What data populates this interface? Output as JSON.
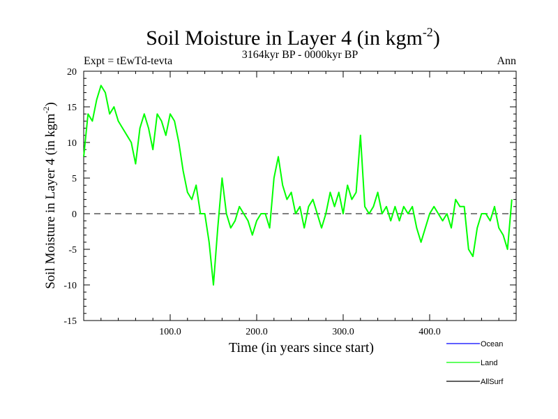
{
  "chart_data": {
    "type": "line",
    "title": "Soil Moisture in Layer 4 (in kgm",
    "title_exponent": "-2",
    "title_close": ")",
    "subtitle_left": "Expt = tEwTd-tevta",
    "subtitle_center": "3164kyr BP - 0000kyr BP",
    "subtitle_right": "Ann",
    "xlabel": "Time (in years since start)",
    "ylabel": "Soil Moisture in Layer 4 (in kgm",
    "ylabel_exponent": "-2",
    "ylabel_close": ")",
    "xlim": [
      0,
      500
    ],
    "ylim": [
      -15,
      20
    ],
    "x_ticks": [
      {
        "value": 100,
        "label": "100.0"
      },
      {
        "value": 200,
        "label": "200.0"
      },
      {
        "value": 300,
        "label": "300.0"
      },
      {
        "value": 400,
        "label": "400.0"
      }
    ],
    "y_ticks": [
      {
        "value": 20,
        "label": "20"
      },
      {
        "value": 15,
        "label": "15"
      },
      {
        "value": 10,
        "label": "10"
      },
      {
        "value": 5,
        "label": "5"
      },
      {
        "value": 0,
        "label": "0"
      },
      {
        "value": -5,
        "label": "-5"
      },
      {
        "value": -10,
        "label": "-10"
      },
      {
        "value": -15,
        "label": "-15"
      }
    ],
    "zero_line": {
      "value": 0,
      "style": "dashed"
    },
    "legend": [
      {
        "name": "Ocean",
        "color": "#0000ff"
      },
      {
        "name": "Land",
        "color": "#00ff00"
      },
      {
        "name": "AllSurf",
        "color": "#000000"
      }
    ],
    "series": [
      {
        "name": "Land",
        "color": "#00ff00",
        "x": [
          0,
          5,
          10,
          15,
          20,
          25,
          30,
          35,
          40,
          45,
          50,
          55,
          60,
          65,
          70,
          75,
          80,
          85,
          90,
          95,
          100,
          105,
          110,
          115,
          120,
          125,
          130,
          135,
          140,
          145,
          150,
          155,
          160,
          165,
          170,
          175,
          180,
          185,
          190,
          195,
          200,
          205,
          210,
          215,
          220,
          225,
          230,
          235,
          240,
          245,
          250,
          255,
          260,
          265,
          270,
          275,
          280,
          285,
          290,
          295,
          300,
          305,
          310,
          315,
          320,
          325,
          330,
          335,
          340,
          345,
          350,
          355,
          360,
          365,
          370,
          375,
          380,
          385,
          390,
          395,
          400,
          405,
          410,
          415,
          420,
          425,
          430,
          435,
          440,
          445,
          450,
          455,
          460,
          465,
          470,
          475,
          480,
          485,
          490,
          495
        ],
        "values": [
          8,
          14,
          13,
          16,
          18,
          17,
          14,
          15,
          13,
          12,
          11,
          10,
          7,
          12,
          14,
          12,
          9,
          14,
          13,
          11,
          14,
          13,
          10,
          6,
          3,
          2,
          4,
          0,
          0,
          -4,
          -10,
          -2,
          5,
          0,
          -2,
          -1,
          1,
          0,
          -1,
          -3,
          -1,
          0,
          0,
          -2,
          5,
          8,
          4,
          2,
          3,
          0,
          1,
          -2,
          1,
          2,
          0,
          -2,
          0,
          3,
          1,
          3,
          0,
          4,
          2,
          3,
          11,
          1,
          0,
          1,
          3,
          0,
          1,
          -1,
          1,
          -1,
          1,
          0,
          1,
          -2,
          -4,
          -2,
          0,
          1,
          0,
          -1,
          0,
          -2,
          2,
          1,
          1,
          -5,
          -6,
          -2,
          0,
          0,
          -1,
          1,
          -2,
          -3,
          -5,
          2
        ]
      }
    ]
  }
}
